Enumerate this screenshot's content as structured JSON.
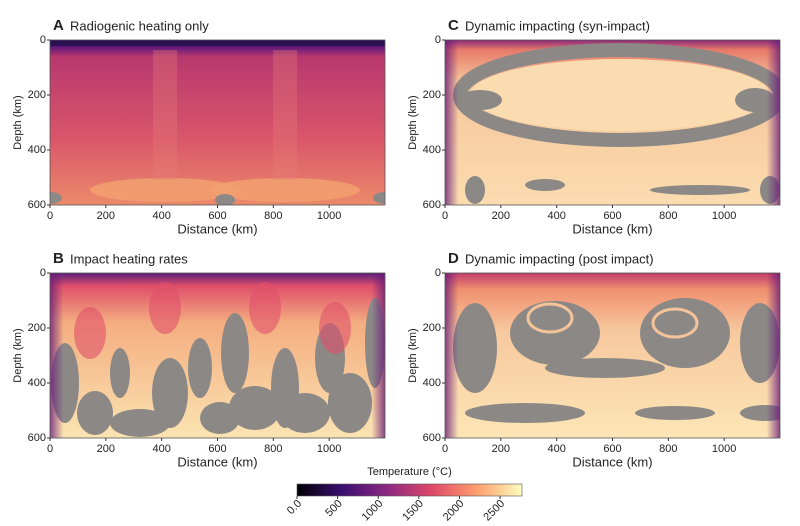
{
  "chart_data": [
    {
      "type": "heatmap",
      "label": "A",
      "title": "Radiogenic heating only",
      "xlabel": "Distance (km)",
      "ylabel": "Depth (km)",
      "xlim": [
        0,
        1200
      ],
      "ylim": [
        600,
        0
      ],
      "xticks": [
        0,
        200,
        400,
        600,
        800,
        1000
      ],
      "yticks": [
        0,
        200,
        400,
        600
      ]
    },
    {
      "type": "heatmap",
      "label": "B",
      "title": "Impact heating rates",
      "xlabel": "Distance (km)",
      "ylabel": "Depth (km)",
      "xlim": [
        0,
        1200
      ],
      "ylim": [
        600,
        0
      ],
      "xticks": [
        0,
        200,
        400,
        600,
        800,
        1000
      ],
      "yticks": [
        0,
        200,
        400,
        600
      ]
    },
    {
      "type": "heatmap",
      "label": "C",
      "title": "Dynamic impacting (syn-impact)",
      "xlabel": "Distance (km)",
      "ylabel": "Depth (km)",
      "xlim": [
        0,
        1200
      ],
      "ylim": [
        600,
        0
      ],
      "xticks": [
        0,
        200,
        400,
        600,
        800,
        1000
      ],
      "yticks": [
        0,
        200,
        400,
        600
      ]
    },
    {
      "type": "heatmap",
      "label": "D",
      "title": "Dynamic impacting (post impact)",
      "xlabel": "Distance (km)",
      "ylabel": "Depth (km)",
      "xlim": [
        0,
        1200
      ],
      "ylim": [
        600,
        0
      ],
      "xticks": [
        0,
        200,
        400,
        600,
        800,
        1000
      ],
      "yticks": [
        0,
        200,
        400,
        600
      ]
    },
    {
      "type": "colorbar",
      "title": "Temperature (°C)",
      "xlim": [
        0,
        2770
      ],
      "xticks": [
        {
          "value": 0,
          "label": "0.0"
        },
        500,
        1000,
        1500,
        2000,
        2500
      ],
      "colors": [
        "#000004",
        "#3b0f70",
        "#8c2981",
        "#de4968",
        "#fe9f6d",
        "#fcfdbf"
      ]
    }
  ]
}
